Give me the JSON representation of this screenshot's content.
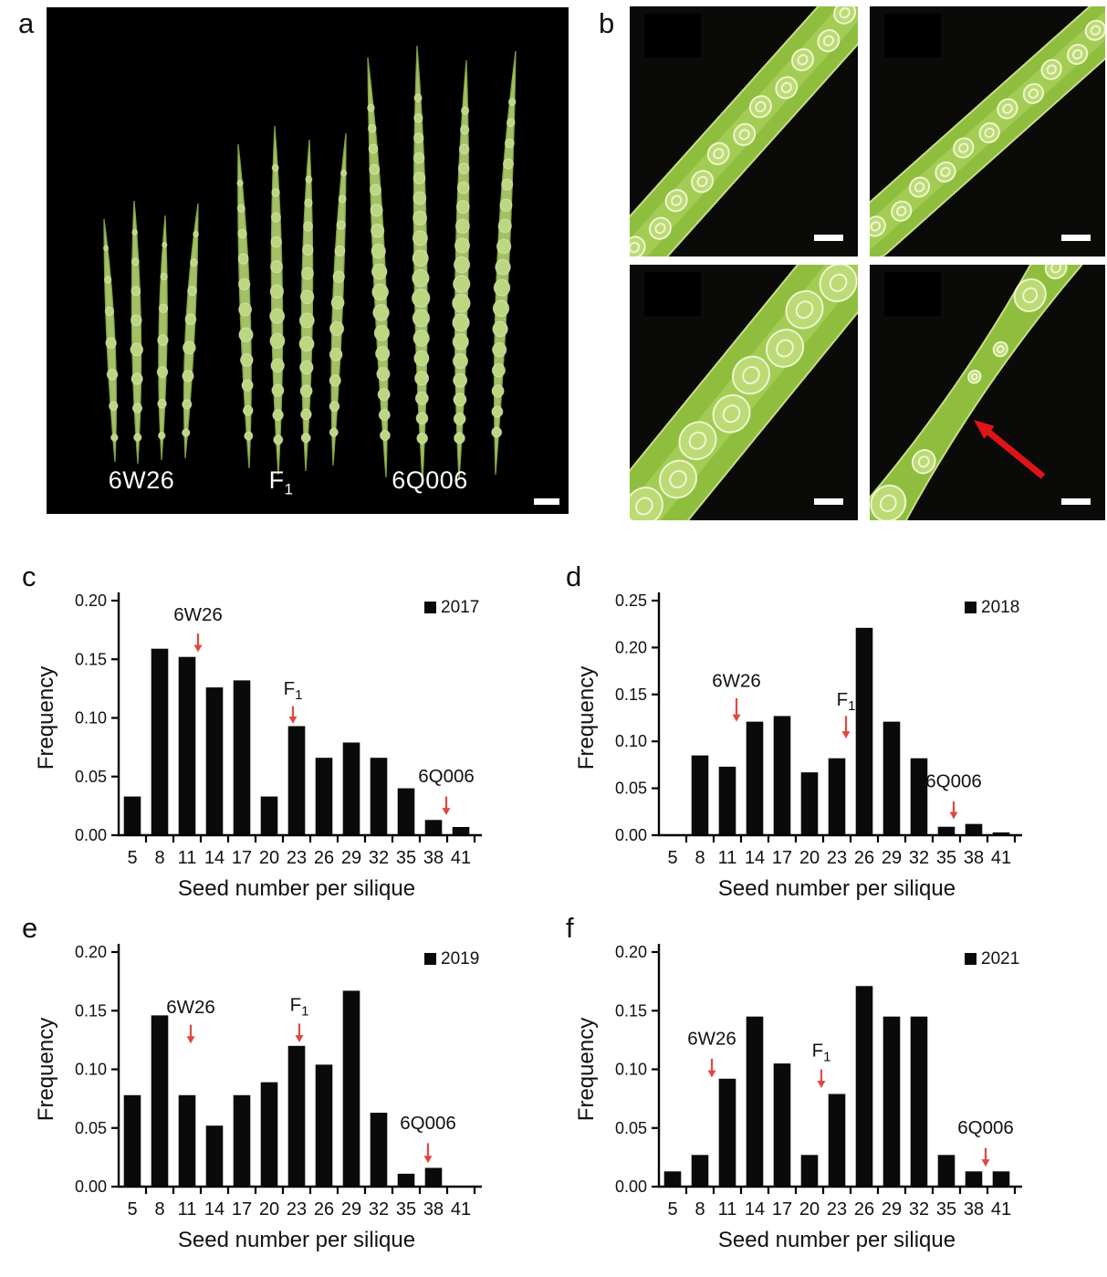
{
  "panels": {
    "a": {
      "letter": "a",
      "genotypes": [
        {
          "name": "6W26"
        },
        {
          "name": "F",
          "sub": "1"
        },
        {
          "name": "6Q006"
        }
      ]
    },
    "b": {
      "letter": "b"
    },
    "c": {
      "letter": "c"
    },
    "d": {
      "letter": "d"
    },
    "e": {
      "letter": "e"
    },
    "f": {
      "letter": "f"
    }
  },
  "colors": {
    "bar": "#0a0a0a",
    "axis": "#000000",
    "chart_arrow": "#e0493f",
    "photo_arrow": "#df1418",
    "scale_bar": "#ffffff",
    "photo_bg": "#000000"
  },
  "chart_data": [
    {
      "panel": "c",
      "type": "bar",
      "year_legend": "2017",
      "legend_position": "top-right",
      "categories": [
        5,
        8,
        11,
        14,
        17,
        20,
        23,
        26,
        29,
        32,
        35,
        38,
        41
      ],
      "values": [
        0.033,
        0.159,
        0.152,
        0.126,
        0.132,
        0.033,
        0.093,
        0.066,
        0.079,
        0.066,
        0.04,
        0.013,
        0.007
      ],
      "xlabel": "Seed number per silique",
      "ylabel": "Frequency",
      "ylim": [
        0,
        0.2
      ],
      "yticks": [
        0,
        0.05,
        0.1,
        0.15,
        0.2
      ],
      "grid": false,
      "annotations": [
        {
          "label": "6W26",
          "x": 12.2,
          "label_y": 0.183,
          "tail_y": 0.172,
          "tip_y": 0.156
        },
        {
          "label": "F",
          "sub": "1",
          "x": 22.6,
          "label_y": 0.12,
          "tail_y": 0.11,
          "tip_y": 0.095
        },
        {
          "label": "6Q006",
          "x": 39.4,
          "label_y": 0.045,
          "tail_y": 0.033,
          "tip_y": 0.017
        }
      ]
    },
    {
      "panel": "d",
      "type": "bar",
      "year_legend": "2018",
      "legend_position": "top-right",
      "categories": [
        5,
        8,
        11,
        14,
        17,
        20,
        23,
        26,
        29,
        32,
        35,
        38,
        41
      ],
      "values": [
        0,
        0.085,
        0.073,
        0.121,
        0.127,
        0.067,
        0.082,
        0.221,
        0.121,
        0.082,
        0.009,
        0.012,
        0.003
      ],
      "xlabel": "Seed number per silique",
      "ylabel": "Frequency",
      "ylim": [
        0,
        0.25
      ],
      "yticks": [
        0,
        0.05,
        0.1,
        0.15,
        0.2,
        0.25
      ],
      "grid": false,
      "annotations": [
        {
          "label": "6W26",
          "x": 12.0,
          "label_y": 0.158,
          "tail_y": 0.146,
          "tip_y": 0.121
        },
        {
          "label": "F",
          "sub": "1",
          "x": 24.0,
          "label_y": 0.138,
          "tail_y": 0.127,
          "tip_y": 0.103
        },
        {
          "label": "6Q006",
          "x": 35.8,
          "label_y": 0.051,
          "tail_y": 0.036,
          "tip_y": 0.017
        }
      ]
    },
    {
      "panel": "e",
      "type": "bar",
      "year_legend": "2019",
      "legend_position": "top-right",
      "categories": [
        5,
        8,
        11,
        14,
        17,
        20,
        23,
        26,
        29,
        32,
        35,
        38,
        41
      ],
      "values": [
        0.078,
        0.146,
        0.078,
        0.052,
        0.078,
        0.089,
        0.12,
        0.104,
        0.167,
        0.063,
        0.011,
        0.016,
        0
      ],
      "xlabel": "Seed number per silique",
      "ylabel": "Frequency",
      "ylim": [
        0,
        0.2
      ],
      "yticks": [
        0,
        0.05,
        0.1,
        0.15,
        0.2
      ],
      "grid": false,
      "annotations": [
        {
          "label": "6W26",
          "x": 11.4,
          "label_y": 0.148,
          "tail_y": 0.138,
          "tip_y": 0.122
        },
        {
          "label": "F",
          "sub": "1",
          "x": 23.3,
          "label_y": 0.15,
          "tail_y": 0.139,
          "tip_y": 0.123
        },
        {
          "label": "6Q006",
          "x": 37.4,
          "label_y": 0.049,
          "tail_y": 0.037,
          "tip_y": 0.02
        }
      ]
    },
    {
      "panel": "f",
      "type": "bar",
      "year_legend": "2021",
      "legend_position": "top-right",
      "categories": [
        5,
        8,
        11,
        14,
        17,
        20,
        23,
        26,
        29,
        32,
        35,
        38,
        41
      ],
      "values": [
        0.013,
        0.027,
        0.092,
        0.145,
        0.105,
        0.027,
        0.079,
        0.171,
        0.145,
        0.145,
        0.027,
        0.013,
        0.013
      ],
      "xlabel": "Seed number per silique",
      "ylabel": "Frequency",
      "ylim": [
        0,
        0.2
      ],
      "yticks": [
        0,
        0.05,
        0.1,
        0.15,
        0.2
      ],
      "grid": false,
      "annotations": [
        {
          "label": "6W26",
          "x": 9.3,
          "label_y": 0.121,
          "tail_y": 0.109,
          "tip_y": 0.093
        },
        {
          "label": "F",
          "sub": "1",
          "x": 21.3,
          "label_y": 0.111,
          "tail_y": 0.1,
          "tip_y": 0.084
        },
        {
          "label": "6Q006",
          "x": 39.3,
          "label_y": 0.045,
          "tail_y": 0.033,
          "tip_y": 0.017
        }
      ]
    }
  ]
}
